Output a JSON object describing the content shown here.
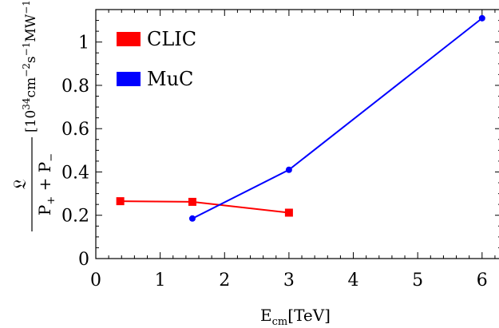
{
  "chart_data": {
    "type": "line",
    "xlabel": {
      "main": "E",
      "sub": "cm",
      "unit": "[TeV]"
    },
    "ylabel": {
      "numerator": "𝔏",
      "denominator_parts": [
        {
          "base": "P",
          "sub": "+"
        },
        {
          "op": " + "
        },
        {
          "base": "P",
          "sub": "−"
        }
      ],
      "unit_parts": [
        {
          "text": "[10"
        },
        {
          "sup": "34"
        },
        {
          "text": "cm"
        },
        {
          "sup": "−2"
        },
        {
          "text": "s"
        },
        {
          "sup": "−1"
        },
        {
          "text": "MW"
        },
        {
          "sup": "−1"
        },
        {
          "text": "]"
        }
      ]
    },
    "xlim": [
      0,
      6.3
    ],
    "ylim": [
      0,
      1.15
    ],
    "xticks": [
      0,
      1,
      2,
      3,
      4,
      5,
      6
    ],
    "yticks": [
      0,
      0.2,
      0.4,
      0.6,
      0.8,
      1.0
    ],
    "ytick_labels": [
      "0",
      "0.2",
      "0.4",
      "0.6",
      "0.8",
      "1"
    ],
    "minor_xticks_per_major": 4,
    "minor_yticks_per_major": 3,
    "grid": false,
    "legend": "top-left",
    "series": [
      {
        "name": "CLIC",
        "color": "#ff0000",
        "marker": "square",
        "x": [
          0.38,
          1.5,
          3.0
        ],
        "y": [
          0.265,
          0.262,
          0.212
        ]
      },
      {
        "name": "MuC",
        "color": "#0000ff",
        "marker": "circle",
        "x": [
          1.5,
          3.0,
          6.0
        ],
        "y": [
          0.185,
          0.41,
          1.11
        ]
      }
    ]
  }
}
